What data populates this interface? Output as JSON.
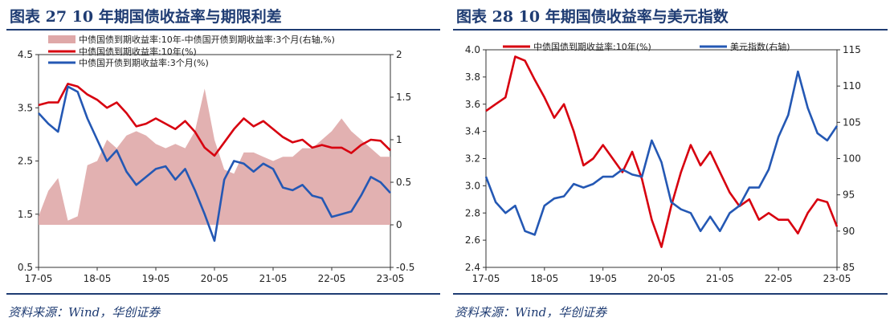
{
  "left": {
    "title": "图表 27 10 年期国债收益率与期限利差",
    "source": "资料来源：Wind，华创证券",
    "chart_data": {
      "type": "line",
      "x_ticks": [
        "17-05",
        "18-05",
        "19-05",
        "20-05",
        "21-05",
        "22-05",
        "23-05"
      ],
      "y_left": {
        "range": [
          0.5,
          4.5
        ],
        "ticks": [
          "0.5",
          "1.5",
          "2.5",
          "3.5",
          "4.5"
        ]
      },
      "y_right": {
        "range": [
          -0.5,
          2.0
        ],
        "ticks": [
          "-0.5",
          "0",
          "0.5",
          "1",
          "1.5",
          "2"
        ]
      },
      "series": [
        {
          "name": "中债国债到期收益率:10年-中债国开债到期收益率:3个月(右轴,%)",
          "kind": "area",
          "axis": "right",
          "color": "#dfa8a8",
          "dates": [
            "2017-05",
            "2017-07",
            "2017-09",
            "2017-11",
            "2018-01",
            "2018-03",
            "2018-05",
            "2018-07",
            "2018-09",
            "2018-11",
            "2019-01",
            "2019-03",
            "2019-05",
            "2019-07",
            "2019-09",
            "2019-11",
            "2020-01",
            "2020-03",
            "2020-05",
            "2020-07",
            "2020-09",
            "2020-11",
            "2021-01",
            "2021-03",
            "2021-05",
            "2021-07",
            "2021-09",
            "2021-11",
            "2022-01",
            "2022-03",
            "2022-05",
            "2022-07",
            "2022-09",
            "2022-11",
            "2023-01",
            "2023-03",
            "2023-05"
          ],
          "values": [
            0.1,
            0.4,
            0.55,
            0.05,
            0.1,
            0.7,
            0.75,
            1.0,
            0.9,
            1.05,
            1.1,
            1.05,
            0.95,
            0.9,
            0.95,
            0.9,
            1.1,
            1.6,
            1.0,
            0.65,
            0.6,
            0.85,
            0.85,
            0.8,
            0.75,
            0.8,
            0.8,
            0.9,
            0.9,
            1.0,
            1.1,
            1.25,
            1.1,
            1.0,
            0.9,
            0.8,
            0.8
          ]
        },
        {
          "name": "中债国债到期收益率:10年(%)",
          "kind": "line",
          "axis": "left",
          "color": "#d7000f",
          "dates": [
            "2017-05",
            "2017-07",
            "2017-09",
            "2017-11",
            "2018-01",
            "2018-03",
            "2018-05",
            "2018-07",
            "2018-09",
            "2018-11",
            "2019-01",
            "2019-03",
            "2019-05",
            "2019-07",
            "2019-09",
            "2019-11",
            "2020-01",
            "2020-03",
            "2020-05",
            "2020-07",
            "2020-09",
            "2020-11",
            "2021-01",
            "2021-03",
            "2021-05",
            "2021-07",
            "2021-09",
            "2021-11",
            "2022-01",
            "2022-03",
            "2022-05",
            "2022-07",
            "2022-09",
            "2022-11",
            "2023-01",
            "2023-03",
            "2023-05"
          ],
          "values": [
            3.55,
            3.6,
            3.6,
            3.95,
            3.9,
            3.75,
            3.65,
            3.5,
            3.6,
            3.4,
            3.15,
            3.2,
            3.3,
            3.2,
            3.1,
            3.25,
            3.05,
            2.75,
            2.6,
            2.85,
            3.1,
            3.3,
            3.15,
            3.25,
            3.1,
            2.95,
            2.85,
            2.9,
            2.75,
            2.8,
            2.75,
            2.75,
            2.65,
            2.8,
            2.9,
            2.88,
            2.7
          ]
        },
        {
          "name": "中债国开债到期收益率:3个月(%)",
          "kind": "line",
          "axis": "left",
          "color": "#2458b4",
          "dates": [
            "2017-05",
            "2017-07",
            "2017-09",
            "2017-11",
            "2018-01",
            "2018-03",
            "2018-05",
            "2018-07",
            "2018-09",
            "2018-11",
            "2019-01",
            "2019-03",
            "2019-05",
            "2019-07",
            "2019-09",
            "2019-11",
            "2020-01",
            "2020-03",
            "2020-05",
            "2020-07",
            "2020-09",
            "2020-11",
            "2021-01",
            "2021-03",
            "2021-05",
            "2021-07",
            "2021-09",
            "2021-11",
            "2022-01",
            "2022-03",
            "2022-05",
            "2022-07",
            "2022-09",
            "2022-11",
            "2023-01",
            "2023-03",
            "2023-05"
          ],
          "values": [
            3.4,
            3.2,
            3.05,
            3.9,
            3.8,
            3.3,
            2.9,
            2.5,
            2.7,
            2.3,
            2.05,
            2.2,
            2.35,
            2.4,
            2.15,
            2.35,
            1.95,
            1.5,
            1.0,
            2.15,
            2.5,
            2.45,
            2.3,
            2.45,
            2.35,
            2.0,
            1.95,
            2.05,
            1.85,
            1.8,
            1.45,
            1.5,
            1.55,
            1.85,
            2.2,
            2.1,
            1.9
          ]
        }
      ]
    }
  },
  "right": {
    "title": "图表 28 10 年期国债收益率与美元指数",
    "source": "资料来源：Wind，华创证券",
    "chart_data": {
      "type": "line",
      "x_ticks": [
        "17-05",
        "18-05",
        "19-05",
        "20-05",
        "21-05",
        "22-05",
        "23-05"
      ],
      "y_left": {
        "range": [
          2.4,
          4.0
        ],
        "ticks": [
          "2.4",
          "2.6",
          "2.8",
          "3.0",
          "3.2",
          "3.4",
          "3.6",
          "3.8",
          "4.0"
        ]
      },
      "y_right": {
        "range": [
          85,
          115
        ],
        "ticks": [
          "85",
          "90",
          "95",
          "100",
          "105",
          "110",
          "115"
        ]
      },
      "series": [
        {
          "name": "中债国债到期收益率:10年(%)",
          "kind": "line",
          "axis": "left",
          "color": "#d7000f",
          "dates": [
            "2017-05",
            "2017-07",
            "2017-09",
            "2017-11",
            "2018-01",
            "2018-03",
            "2018-05",
            "2018-07",
            "2018-09",
            "2018-11",
            "2019-01",
            "2019-03",
            "2019-05",
            "2019-07",
            "2019-09",
            "2019-11",
            "2020-01",
            "2020-03",
            "2020-05",
            "2020-07",
            "2020-09",
            "2020-11",
            "2021-01",
            "2021-03",
            "2021-05",
            "2021-07",
            "2021-09",
            "2021-11",
            "2022-01",
            "2022-03",
            "2022-05",
            "2022-07",
            "2022-09",
            "2022-11",
            "2023-01",
            "2023-03",
            "2023-05"
          ],
          "values": [
            3.55,
            3.6,
            3.65,
            3.95,
            3.92,
            3.78,
            3.65,
            3.5,
            3.6,
            3.4,
            3.15,
            3.2,
            3.3,
            3.2,
            3.1,
            3.25,
            3.05,
            2.75,
            2.55,
            2.85,
            3.1,
            3.3,
            3.15,
            3.25,
            3.1,
            2.95,
            2.85,
            2.9,
            2.75,
            2.8,
            2.75,
            2.75,
            2.65,
            2.8,
            2.9,
            2.88,
            2.7
          ]
        },
        {
          "name": "美元指数(右轴)",
          "kind": "line",
          "axis": "right",
          "color": "#2458b4",
          "dates": [
            "2017-05",
            "2017-07",
            "2017-09",
            "2017-11",
            "2018-01",
            "2018-03",
            "2018-05",
            "2018-07",
            "2018-09",
            "2018-11",
            "2019-01",
            "2019-03",
            "2019-05",
            "2019-07",
            "2019-09",
            "2019-11",
            "2020-01",
            "2020-03",
            "2020-05",
            "2020-07",
            "2020-09",
            "2020-11",
            "2021-01",
            "2021-03",
            "2021-05",
            "2021-07",
            "2021-09",
            "2021-11",
            "2022-01",
            "2022-03",
            "2022-05",
            "2022-07",
            "2022-09",
            "2022-11",
            "2023-01",
            "2023-03",
            "2023-05"
          ],
          "values": [
            97.5,
            94,
            92.5,
            93.5,
            90,
            89.5,
            93.5,
            94.5,
            94.8,
            96.5,
            96,
            96.5,
            97.5,
            97.5,
            98.5,
            97.8,
            97.5,
            102.5,
            99.5,
            94,
            93,
            92.5,
            90,
            92,
            90,
            92.5,
            93.5,
            96,
            96,
            98.5,
            103,
            106,
            112,
            107,
            103.5,
            102.5,
            104.5
          ]
        }
      ]
    }
  }
}
